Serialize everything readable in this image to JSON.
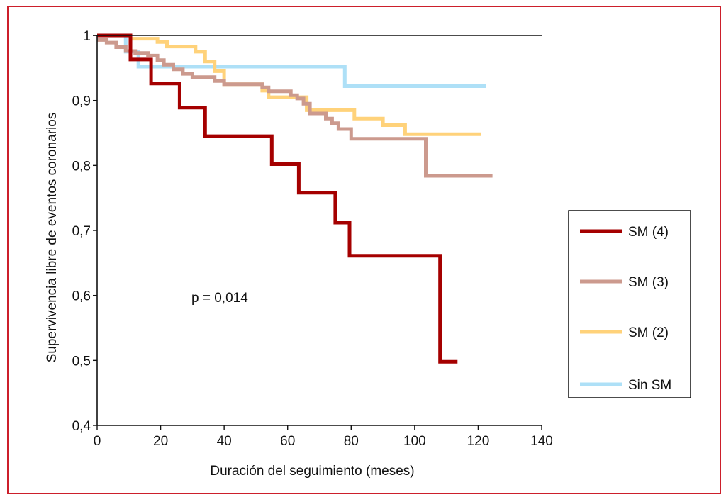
{
  "chart_data": {
    "type": "line",
    "subtype": "kaplan-meier step",
    "title": "",
    "xlabel": "Duración del seguimiento (meses)",
    "ylabel": "Supervivencia libre de eventos coronarios",
    "xlim": [
      0,
      140
    ],
    "ylim": [
      0.4,
      1
    ],
    "x_ticks": [
      0,
      20,
      40,
      60,
      80,
      100,
      120,
      140
    ],
    "x_tick_labels": [
      "0",
      "20",
      "40",
      "60",
      "80",
      "100",
      "120",
      "140"
    ],
    "y_ticks": [
      0.4,
      0.5,
      0.6,
      0.7,
      0.8,
      0.9,
      1
    ],
    "y_tick_labels": [
      "0,4",
      "0,5",
      "0,6",
      "0,7",
      "0,8",
      "0,9",
      "1"
    ],
    "grid": false,
    "legend_position": "right",
    "annotation": "p = 0,014",
    "series": [
      {
        "name": "SM (4)",
        "color": "#a50000",
        "points": [
          [
            0,
            1.0
          ],
          [
            10.5,
            1.0
          ],
          [
            10.5,
            0.963
          ],
          [
            17,
            0.963
          ],
          [
            17,
            0.926
          ],
          [
            26,
            0.926
          ],
          [
            26,
            0.889
          ],
          [
            34,
            0.889
          ],
          [
            34,
            0.845
          ],
          [
            55,
            0.845
          ],
          [
            55,
            0.802
          ],
          [
            63.5,
            0.802
          ],
          [
            63.5,
            0.758
          ],
          [
            75,
            0.758
          ],
          [
            75,
            0.712
          ],
          [
            79.5,
            0.712
          ],
          [
            79.5,
            0.661
          ],
          [
            108,
            0.661
          ],
          [
            108,
            0.498
          ],
          [
            113.5,
            0.498
          ]
        ]
      },
      {
        "name": "SM (3)",
        "color": "#cc9a8e",
        "points": [
          [
            0,
            0.993
          ],
          [
            3,
            0.993
          ],
          [
            3,
            0.989
          ],
          [
            6,
            0.989
          ],
          [
            6,
            0.982
          ],
          [
            9,
            0.982
          ],
          [
            9,
            0.976
          ],
          [
            12,
            0.976
          ],
          [
            12,
            0.973
          ],
          [
            16,
            0.973
          ],
          [
            16,
            0.969
          ],
          [
            19,
            0.969
          ],
          [
            19,
            0.962
          ],
          [
            21,
            0.962
          ],
          [
            21,
            0.955
          ],
          [
            24,
            0.955
          ],
          [
            24,
            0.948
          ],
          [
            27,
            0.948
          ],
          [
            27,
            0.941
          ],
          [
            30,
            0.941
          ],
          [
            30,
            0.936
          ],
          [
            37,
            0.936
          ],
          [
            37,
            0.93
          ],
          [
            40,
            0.93
          ],
          [
            40,
            0.925
          ],
          [
            52,
            0.925
          ],
          [
            52,
            0.92
          ],
          [
            54,
            0.92
          ],
          [
            54,
            0.914
          ],
          [
            61,
            0.914
          ],
          [
            61,
            0.908
          ],
          [
            63,
            0.908
          ],
          [
            63,
            0.903
          ],
          [
            65,
            0.903
          ],
          [
            65,
            0.895
          ],
          [
            67,
            0.895
          ],
          [
            67,
            0.88
          ],
          [
            72,
            0.88
          ],
          [
            72,
            0.872
          ],
          [
            74,
            0.872
          ],
          [
            74,
            0.865
          ],
          [
            76,
            0.865
          ],
          [
            76,
            0.856
          ],
          [
            80,
            0.856
          ],
          [
            80,
            0.841
          ],
          [
            103.5,
            0.841
          ],
          [
            103.5,
            0.784
          ],
          [
            124.5,
            0.784
          ]
        ]
      },
      {
        "name": "SM (2)",
        "color": "#ffd27a",
        "points": [
          [
            10,
            0.995
          ],
          [
            19,
            0.995
          ],
          [
            19,
            0.99
          ],
          [
            22,
            0.99
          ],
          [
            22,
            0.983
          ],
          [
            31,
            0.983
          ],
          [
            31,
            0.975
          ],
          [
            34,
            0.975
          ],
          [
            34,
            0.96
          ],
          [
            37,
            0.96
          ],
          [
            37,
            0.945
          ],
          [
            40,
            0.945
          ],
          [
            40,
            0.925
          ],
          [
            52,
            0.925
          ],
          [
            52,
            0.915
          ],
          [
            54,
            0.915
          ],
          [
            54,
            0.905
          ],
          [
            66,
            0.905
          ],
          [
            66,
            0.885
          ],
          [
            81,
            0.885
          ],
          [
            81,
            0.872
          ],
          [
            90,
            0.872
          ],
          [
            90,
            0.862
          ],
          [
            97,
            0.862
          ],
          [
            97,
            0.848
          ],
          [
            121,
            0.848
          ]
        ]
      },
      {
        "name": "Sin SM",
        "color": "#aee0f7",
        "points": [
          [
            0,
            1.0
          ],
          [
            9,
            1.0
          ],
          [
            9,
            0.975
          ],
          [
            13,
            0.975
          ],
          [
            13,
            0.952
          ],
          [
            78,
            0.952
          ],
          [
            78,
            0.922
          ],
          [
            122.5,
            0.922
          ]
        ]
      }
    ]
  }
}
